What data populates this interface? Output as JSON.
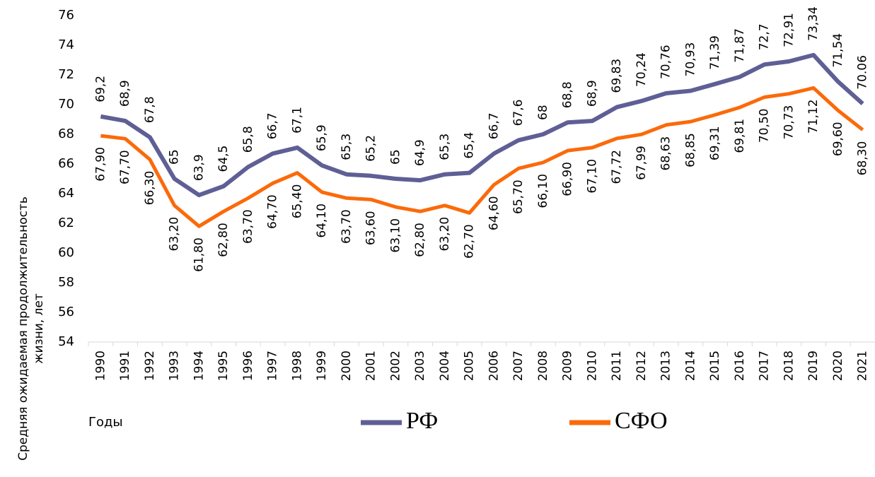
{
  "chart_data": {
    "type": "line",
    "y_label": "Средняя ожидаемая продолжительность жизни, лет",
    "x_label": "Годы",
    "categories": [
      "1990",
      "1991",
      "1992",
      "1993",
      "1994",
      "1995",
      "1996",
      "1997",
      "1998",
      "1999",
      "2000",
      "2001",
      "2002",
      "2003",
      "2004",
      "2005",
      "2006",
      "2007",
      "2008",
      "2009",
      "2010",
      "2011",
      "2012",
      "2013",
      "2014",
      "2015",
      "2016",
      "2017",
      "2018",
      "2019",
      "2020",
      "2021"
    ],
    "series": [
      {
        "name": "РФ",
        "color": "#5f5f96",
        "values": [
          69.2,
          68.9,
          67.8,
          65,
          63.9,
          64.5,
          65.8,
          66.7,
          67.1,
          65.9,
          65.3,
          65.2,
          65,
          64.9,
          65.3,
          65.4,
          66.7,
          67.6,
          68,
          68.8,
          68.9,
          69.83,
          70.24,
          70.76,
          70.93,
          71.39,
          71.87,
          72.7,
          72.91,
          73.34,
          71.54,
          70.06
        ],
        "value_labels": [
          "69,2",
          "68,9",
          "67,8",
          "65",
          "63,9",
          "64,5",
          "65,8",
          "66,7",
          "67,1",
          "65,9",
          "65,3",
          "65,2",
          "65",
          "64,9",
          "65,3",
          "65,4",
          "66,7",
          "67,6",
          "68",
          "68,8",
          "68,9",
          "69,83",
          "70,24",
          "70,76",
          "70,93",
          "71,39",
          "71,87",
          "72,7",
          "72,91",
          "73,34",
          "71,54",
          "70.06"
        ]
      },
      {
        "name": "СФО",
        "color": "#fb6a0a",
        "values": [
          67.9,
          67.7,
          66.3,
          63.2,
          61.8,
          62.8,
          63.7,
          64.7,
          65.4,
          64.1,
          63.7,
          63.6,
          63.1,
          62.8,
          63.2,
          62.7,
          64.6,
          65.7,
          66.1,
          66.9,
          67.1,
          67.72,
          67.99,
          68.63,
          68.85,
          69.31,
          69.81,
          70.5,
          70.73,
          71.12,
          69.6,
          68.3
        ],
        "value_labels": [
          "67,90",
          "67,70",
          "66,30",
          "63,20",
          "61,80",
          "62,80",
          "63,70",
          "64,70",
          "65,40",
          "64,10",
          "63,70",
          "63,60",
          "63,10",
          "62,80",
          "63,20",
          "62,70",
          "64,60",
          "65,70",
          "66,10",
          "66,90",
          "67,10",
          "67,72",
          "67,99",
          "68,63",
          "68,85",
          "69,31",
          "69,81",
          "70,50",
          "70,73",
          "71,12",
          "69,60",
          "68,30"
        ]
      }
    ],
    "ylim": [
      54,
      76
    ],
    "yticks": [
      54,
      56,
      58,
      60,
      62,
      64,
      66,
      68,
      70,
      72,
      74,
      76
    ]
  }
}
